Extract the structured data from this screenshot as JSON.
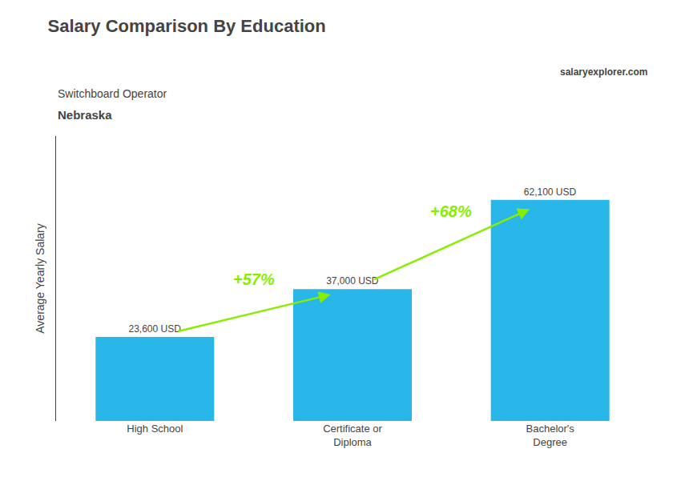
{
  "chart_data": {
    "type": "bar",
    "title": "Salary Comparison By Education",
    "subtitle": [
      "Switchboard Operator",
      "Nebraska"
    ],
    "ylabel": "Average Yearly Salary",
    "categories": [
      "High School",
      "Certificate or\nDiploma",
      "Bachelor's\nDegree"
    ],
    "values": [
      23600,
      37000,
      62100
    ],
    "value_labels": [
      "23,600 USD",
      "37,000 USD",
      "62,100 USD"
    ],
    "data_labels": true,
    "color": "#29b6e8",
    "ylim": [
      0,
      80000
    ],
    "yticks": [],
    "tick_labels": "x",
    "grid": false,
    "annotations": [
      {
        "text": "+57%",
        "from": "High School",
        "to": "Certificate or\nDiploma",
        "color": "#88ee00"
      },
      {
        "text": "+68%",
        "from": "Certificate or\nDiploma",
        "to": "Bachelor's\nDegree",
        "color": "#88ee00"
      },
      {
        "text": "salaryexplorer.com"
      }
    ]
  }
}
